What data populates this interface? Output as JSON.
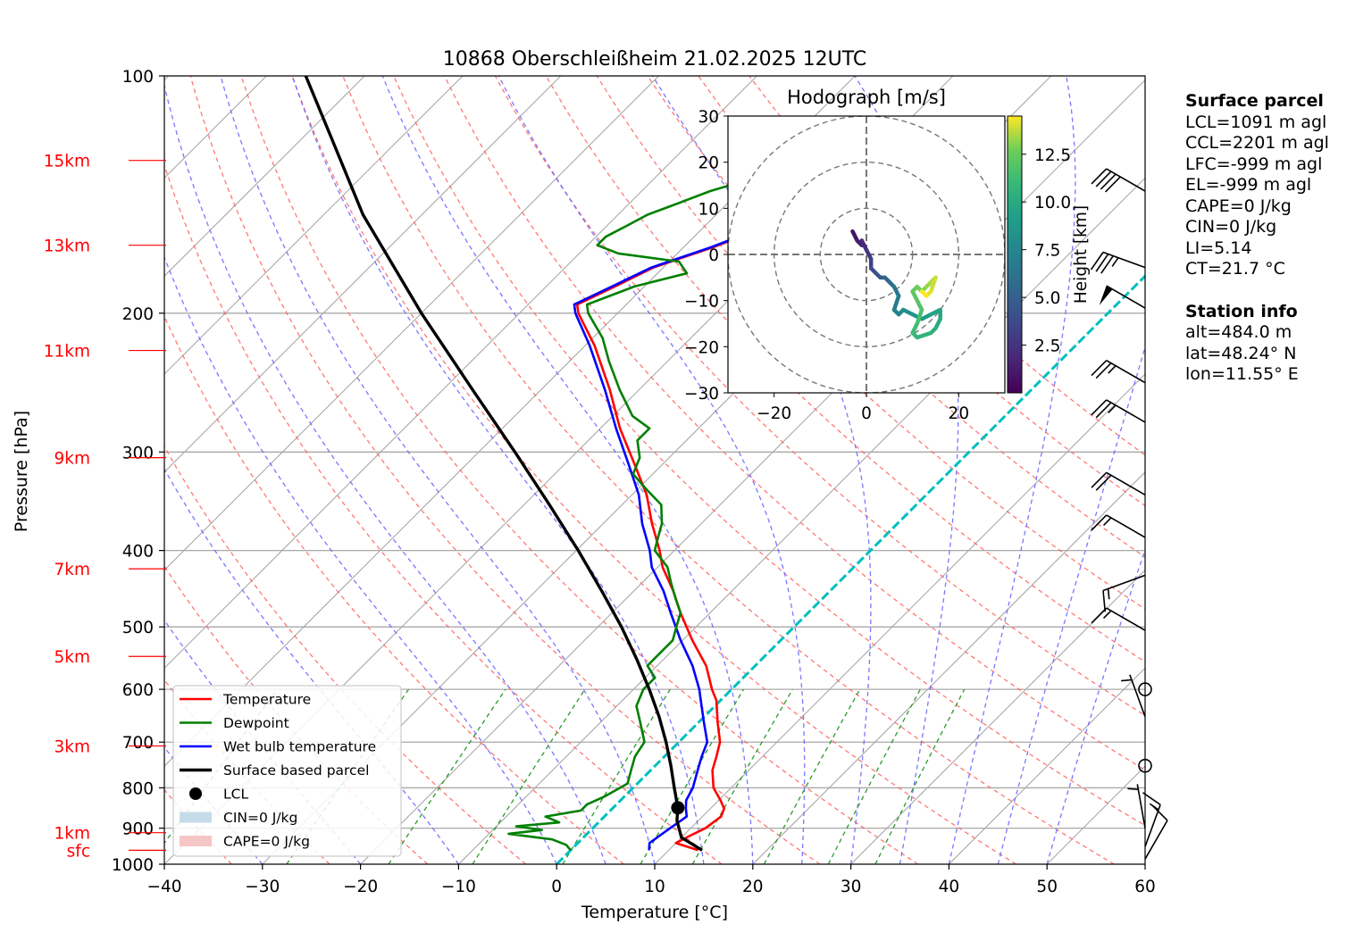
{
  "title": "10868 Oberschleißheim 21.02.2025 12UTC",
  "colors": {
    "temperature": "#ff0000",
    "dewpoint": "#008000",
    "wetbulb": "#0000ff",
    "parcel": "#000000",
    "dry_adiabat": "#ff6060",
    "moist_adiabat": "#6060ff",
    "mixing_ratio": "#2a9a2a",
    "isotherm": "#a8a8a8",
    "zero_isotherm": "#00bfbf",
    "height_labels": "#ff0000",
    "cin_fill": "#c6dbea",
    "cape_fill": "#f5c6c6"
  },
  "chart_data": {
    "type": "line",
    "subtype": "skew-T log-p diagram",
    "title": "10868 Oberschleißheim 21.02.2025 12UTC",
    "xlabel": "Temperature [°C]",
    "ylabel": "Pressure [hPa]",
    "xlim": [
      -40,
      60
    ],
    "ylim": [
      1000,
      100
    ],
    "y_scale": "log",
    "x_ticks": [
      "−40",
      "−30",
      "−20",
      "−10",
      "0",
      "10",
      "20",
      "30",
      "40",
      "50",
      "60"
    ],
    "y_ticks": [
      "100",
      "200",
      "300",
      "400",
      "500",
      "600",
      "700",
      "800",
      "900",
      "1000"
    ],
    "height_ticks": [
      {
        "label": "15km",
        "p": 128
      },
      {
        "label": "13km",
        "p": 164
      },
      {
        "label": "11km",
        "p": 223
      },
      {
        "label": "9km",
        "p": 305
      },
      {
        "label": "7km",
        "p": 422
      },
      {
        "label": "5km",
        "p": 545
      },
      {
        "label": "3km",
        "p": 708
      },
      {
        "label": "1km",
        "p": 912
      },
      {
        "label": "sfc",
        "p": 960
      }
    ],
    "grid": true,
    "legend_position": "lower-left",
    "legend": [
      {
        "label": "Temperature",
        "kind": "line",
        "color": "#ff0000"
      },
      {
        "label": "Dewpoint",
        "kind": "line",
        "color": "#008000"
      },
      {
        "label": "Wet bulb temperature",
        "kind": "line",
        "color": "#0000ff"
      },
      {
        "label": "Surface based parcel",
        "kind": "line",
        "color": "#000000"
      },
      {
        "label": "LCL",
        "kind": "dot",
        "color": "#000000"
      },
      {
        "label": "CIN=0 J/kg",
        "kind": "box",
        "color": "#c6dbea"
      },
      {
        "label": "CAPE=0 J/kg",
        "kind": "box",
        "color": "#f5c6c6"
      }
    ],
    "series": [
      {
        "name": "Temperature",
        "color": "#ff0000",
        "points": [
          [
            960,
            13
          ],
          [
            940,
            10
          ],
          [
            920,
            10.7
          ],
          [
            900,
            11.5
          ],
          [
            870,
            11.9
          ],
          [
            850,
            11.4
          ],
          [
            830,
            10.2
          ],
          [
            800,
            8.2
          ],
          [
            760,
            6.3
          ],
          [
            730,
            5.3
          ],
          [
            700,
            4.2
          ],
          [
            660,
            1.9
          ],
          [
            620,
            -0.4
          ],
          [
            600,
            -2
          ],
          [
            560,
            -5
          ],
          [
            520,
            -9
          ],
          [
            480,
            -13
          ],
          [
            450,
            -16
          ],
          [
            420,
            -19.5
          ],
          [
            400,
            -21.5
          ],
          [
            370,
            -25
          ],
          [
            340,
            -28.5
          ],
          [
            310,
            -33
          ],
          [
            280,
            -38
          ],
          [
            250,
            -43
          ],
          [
            220,
            -49
          ],
          [
            200,
            -54
          ],
          [
            195,
            -55
          ],
          [
            185,
            -53
          ],
          [
            175,
            -51
          ],
          [
            165,
            -47
          ],
          [
            155,
            -43.5
          ],
          [
            145,
            -39
          ],
          [
            138,
            -37
          ],
          [
            133,
            -35
          ],
          [
            130,
            -33
          ],
          [
            128,
            -32
          ]
        ]
      },
      {
        "name": "Wet bulb temperature",
        "color": "#0000ff",
        "points": [
          [
            960,
            8
          ],
          [
            940,
            7.3
          ],
          [
            920,
            7.6
          ],
          [
            900,
            7.9
          ],
          [
            870,
            8.4
          ],
          [
            850,
            7.5
          ],
          [
            830,
            6.7
          ],
          [
            800,
            6.1
          ],
          [
            760,
            4.8
          ],
          [
            730,
            3.8
          ],
          [
            700,
            2.9
          ],
          [
            660,
            0.5
          ],
          [
            620,
            -2
          ],
          [
            600,
            -3.3
          ],
          [
            560,
            -6.4
          ],
          [
            520,
            -10.2
          ],
          [
            480,
            -14
          ],
          [
            450,
            -17
          ],
          [
            420,
            -20.6
          ],
          [
            400,
            -22.5
          ],
          [
            370,
            -26
          ],
          [
            340,
            -29.3
          ],
          [
            310,
            -33.6
          ],
          [
            280,
            -38.4
          ],
          [
            250,
            -43.5
          ],
          [
            220,
            -49.5
          ],
          [
            200,
            -54.3
          ],
          [
            195,
            -55.3
          ],
          [
            185,
            -53.3
          ],
          [
            175,
            -51.2
          ],
          [
            165,
            -47.2
          ],
          [
            155,
            -43.7
          ],
          [
            145,
            -39.2
          ],
          [
            138,
            -37.1
          ],
          [
            133,
            -35
          ],
          [
            130,
            -33.2
          ],
          [
            128,
            -32.2
          ]
        ]
      },
      {
        "name": "Dewpoint",
        "color": "#008000",
        "points": [
          [
            960,
            0
          ],
          [
            945,
            -1
          ],
          [
            930,
            -3
          ],
          [
            915,
            -8
          ],
          [
            905,
            -5
          ],
          [
            895,
            -8
          ],
          [
            885,
            -4
          ],
          [
            870,
            -6
          ],
          [
            855,
            -3
          ],
          [
            840,
            -3
          ],
          [
            820,
            -2
          ],
          [
            790,
            -1
          ],
          [
            760,
            -2
          ],
          [
            730,
            -3
          ],
          [
            700,
            -3.5
          ],
          [
            660,
            -6
          ],
          [
            630,
            -8
          ],
          [
            600,
            -9
          ],
          [
            580,
            -9
          ],
          [
            560,
            -11
          ],
          [
            540,
            -11
          ],
          [
            520,
            -11
          ],
          [
            500,
            -12
          ],
          [
            480,
            -13
          ],
          [
            460,
            -15
          ],
          [
            440,
            -17
          ],
          [
            420,
            -19
          ],
          [
            400,
            -22
          ],
          [
            385,
            -23
          ],
          [
            370,
            -24
          ],
          [
            350,
            -26
          ],
          [
            335,
            -29
          ],
          [
            320,
            -32
          ],
          [
            305,
            -33
          ],
          [
            290,
            -35
          ],
          [
            280,
            -35
          ],
          [
            270,
            -38
          ],
          [
            250,
            -42
          ],
          [
            230,
            -46
          ],
          [
            215,
            -49
          ],
          [
            200,
            -53
          ],
          [
            195,
            -54
          ],
          [
            185,
            -51
          ],
          [
            178,
            -47
          ],
          [
            172,
            -49
          ],
          [
            168,
            -56
          ],
          [
            164,
            -59
          ],
          [
            160,
            -59
          ],
          [
            155,
            -58
          ],
          [
            150,
            -57
          ],
          [
            145,
            -55
          ],
          [
            140,
            -53
          ],
          [
            135,
            -50
          ],
          [
            130,
            -48
          ],
          [
            128,
            -48
          ]
        ]
      },
      {
        "name": "Surface based parcel",
        "color": "#000000",
        "points": [
          [
            960,
            13.4
          ],
          [
            925,
            10
          ],
          [
            880,
            7.8
          ],
          [
            848,
            6.6
          ],
          [
            800,
            4.2
          ],
          [
            750,
            1.6
          ],
          [
            700,
            -1.3
          ],
          [
            650,
            -4.6
          ],
          [
            600,
            -8.4
          ],
          [
            550,
            -12.7
          ],
          [
            500,
            -17.6
          ],
          [
            450,
            -23.3
          ],
          [
            400,
            -29.8
          ],
          [
            350,
            -37.4
          ],
          [
            300,
            -46.3
          ],
          [
            250,
            -57
          ],
          [
            200,
            -70
          ],
          [
            150,
            -86
          ],
          [
            120,
            -97
          ],
          [
            100,
            -106
          ]
        ]
      }
    ],
    "lcl": {
      "p": 848,
      "t": 6.6
    },
    "cin_j_per_kg": 0,
    "cape_j_per_kg": 0,
    "isotherms_c": [
      -120,
      -110,
      -100,
      -90,
      -80,
      -70,
      -60,
      -50,
      -40,
      -30,
      -20,
      -10,
      10,
      20,
      30,
      40,
      50,
      60
    ],
    "zero_isotherm_c": 0,
    "dry_adiabats_theta_k": [
      240,
      250,
      260,
      270,
      280,
      290,
      300,
      310,
      320,
      330,
      340,
      350,
      360,
      370,
      380,
      390,
      400,
      410
    ],
    "moist_adiabats_c_at_1000": [
      -30,
      -20,
      -10,
      0,
      5,
      10,
      15,
      20,
      25,
      30,
      35,
      40,
      45,
      50
    ],
    "mixing_ratio_lines_gkg": [
      0.1,
      0.4,
      1,
      2,
      4,
      7,
      10,
      16,
      24,
      32
    ],
    "wind_barbs": [
      {
        "p": 140,
        "dir": 300,
        "speed_kt": 40
      },
      {
        "p": 175,
        "dir": 290,
        "speed_kt": 35
      },
      {
        "p": 197,
        "dir": 300,
        "speed_kt": 50
      },
      {
        "p": 245,
        "dir": 300,
        "speed_kt": 25
      },
      {
        "p": 275,
        "dir": 300,
        "speed_kt": 25
      },
      {
        "p": 340,
        "dir": 300,
        "speed_kt": 20
      },
      {
        "p": 385,
        "dir": 300,
        "speed_kt": 15
      },
      {
        "p": 430,
        "dir": 250,
        "speed_kt": 15
      },
      {
        "p": 505,
        "dir": 300,
        "speed_kt": 15
      },
      {
        "p": 600,
        "dir": 0,
        "speed_kt": 0
      },
      {
        "p": 650,
        "dir": 340,
        "speed_kt": 5
      },
      {
        "p": 750,
        "dir": 0,
        "speed_kt": 0
      },
      {
        "p": 900,
        "dir": 350,
        "speed_kt": 5
      },
      {
        "p": 950,
        "dir": 20,
        "speed_kt": 15
      },
      {
        "p": 985,
        "dir": 30,
        "speed_kt": 10
      }
    ],
    "hodograph": {
      "title": "Hodograph [m/s]",
      "xlim": [
        -30,
        30
      ],
      "ylim": [
        -30,
        30
      ],
      "x_ticks": [
        "−20",
        "0",
        "20"
      ],
      "y_ticks": [
        "30",
        "20",
        "10",
        "0",
        "−10",
        "−20",
        "−30"
      ],
      "ring_radii": [
        10,
        20,
        30
      ],
      "colorbar_label": "Height [km]",
      "colorbar_ticks": [
        "12.5",
        "10.0",
        "7.5",
        "5.0",
        "2.5"
      ],
      "colorbar_range": [
        0,
        14.5
      ],
      "points": [
        [
          -3,
          5,
          0.3
        ],
        [
          -2,
          3,
          0.8
        ],
        [
          -1,
          2,
          1.3
        ],
        [
          -1,
          3,
          1.6
        ],
        [
          0,
          1,
          2.0
        ],
        [
          1,
          -1,
          2.6
        ],
        [
          1,
          -3,
          3.2
        ],
        [
          2,
          -4,
          3.8
        ],
        [
          3,
          -5,
          4.3
        ],
        [
          4,
          -5,
          4.8
        ],
        [
          5,
          -6,
          5.3
        ],
        [
          6,
          -7,
          5.8
        ],
        [
          7,
          -9,
          6.3
        ],
        [
          6,
          -12,
          6.8
        ],
        [
          7,
          -13,
          7.2
        ],
        [
          8,
          -12,
          7.6
        ],
        [
          10,
          -13,
          8.1
        ],
        [
          12,
          -14,
          8.6
        ],
        [
          14,
          -13,
          9.0
        ],
        [
          16,
          -12,
          9.4
        ],
        [
          16,
          -14,
          9.7
        ],
        [
          15,
          -16,
          10.0
        ],
        [
          14,
          -17,
          10.3
        ],
        [
          11,
          -18,
          10.6
        ],
        [
          10,
          -17,
          10.9
        ],
        [
          11,
          -15,
          11.2
        ],
        [
          12,
          -12,
          11.5
        ],
        [
          11,
          -10,
          11.8
        ],
        [
          10,
          -8,
          12.1
        ],
        [
          11,
          -7,
          12.4
        ],
        [
          12,
          -8,
          12.7
        ],
        [
          13,
          -7,
          13.0
        ],
        [
          14,
          -6,
          13.3
        ],
        [
          15,
          -5,
          13.6
        ],
        [
          14,
          -8,
          13.9
        ],
        [
          13,
          -9,
          14.2
        ],
        [
          12,
          -8,
          14.5
        ]
      ]
    }
  },
  "surface_parcel": {
    "header": "Surface parcel",
    "lcl": "LCL=1091 m agl",
    "ccl": "CCL=2201 m agl",
    "lfc": "LFC=-999 m agl",
    "el": "EL=-999 m agl",
    "cape": "CAPE=0 J/kg",
    "cin": "CIN=0 J/kg",
    "li": "LI=5.14",
    "ct": "CT=21.7 °C"
  },
  "station_info": {
    "header": "Station info",
    "alt": "alt=484.0 m",
    "lat": "lat=48.24° N",
    "lon": "lon=11.55° E"
  }
}
